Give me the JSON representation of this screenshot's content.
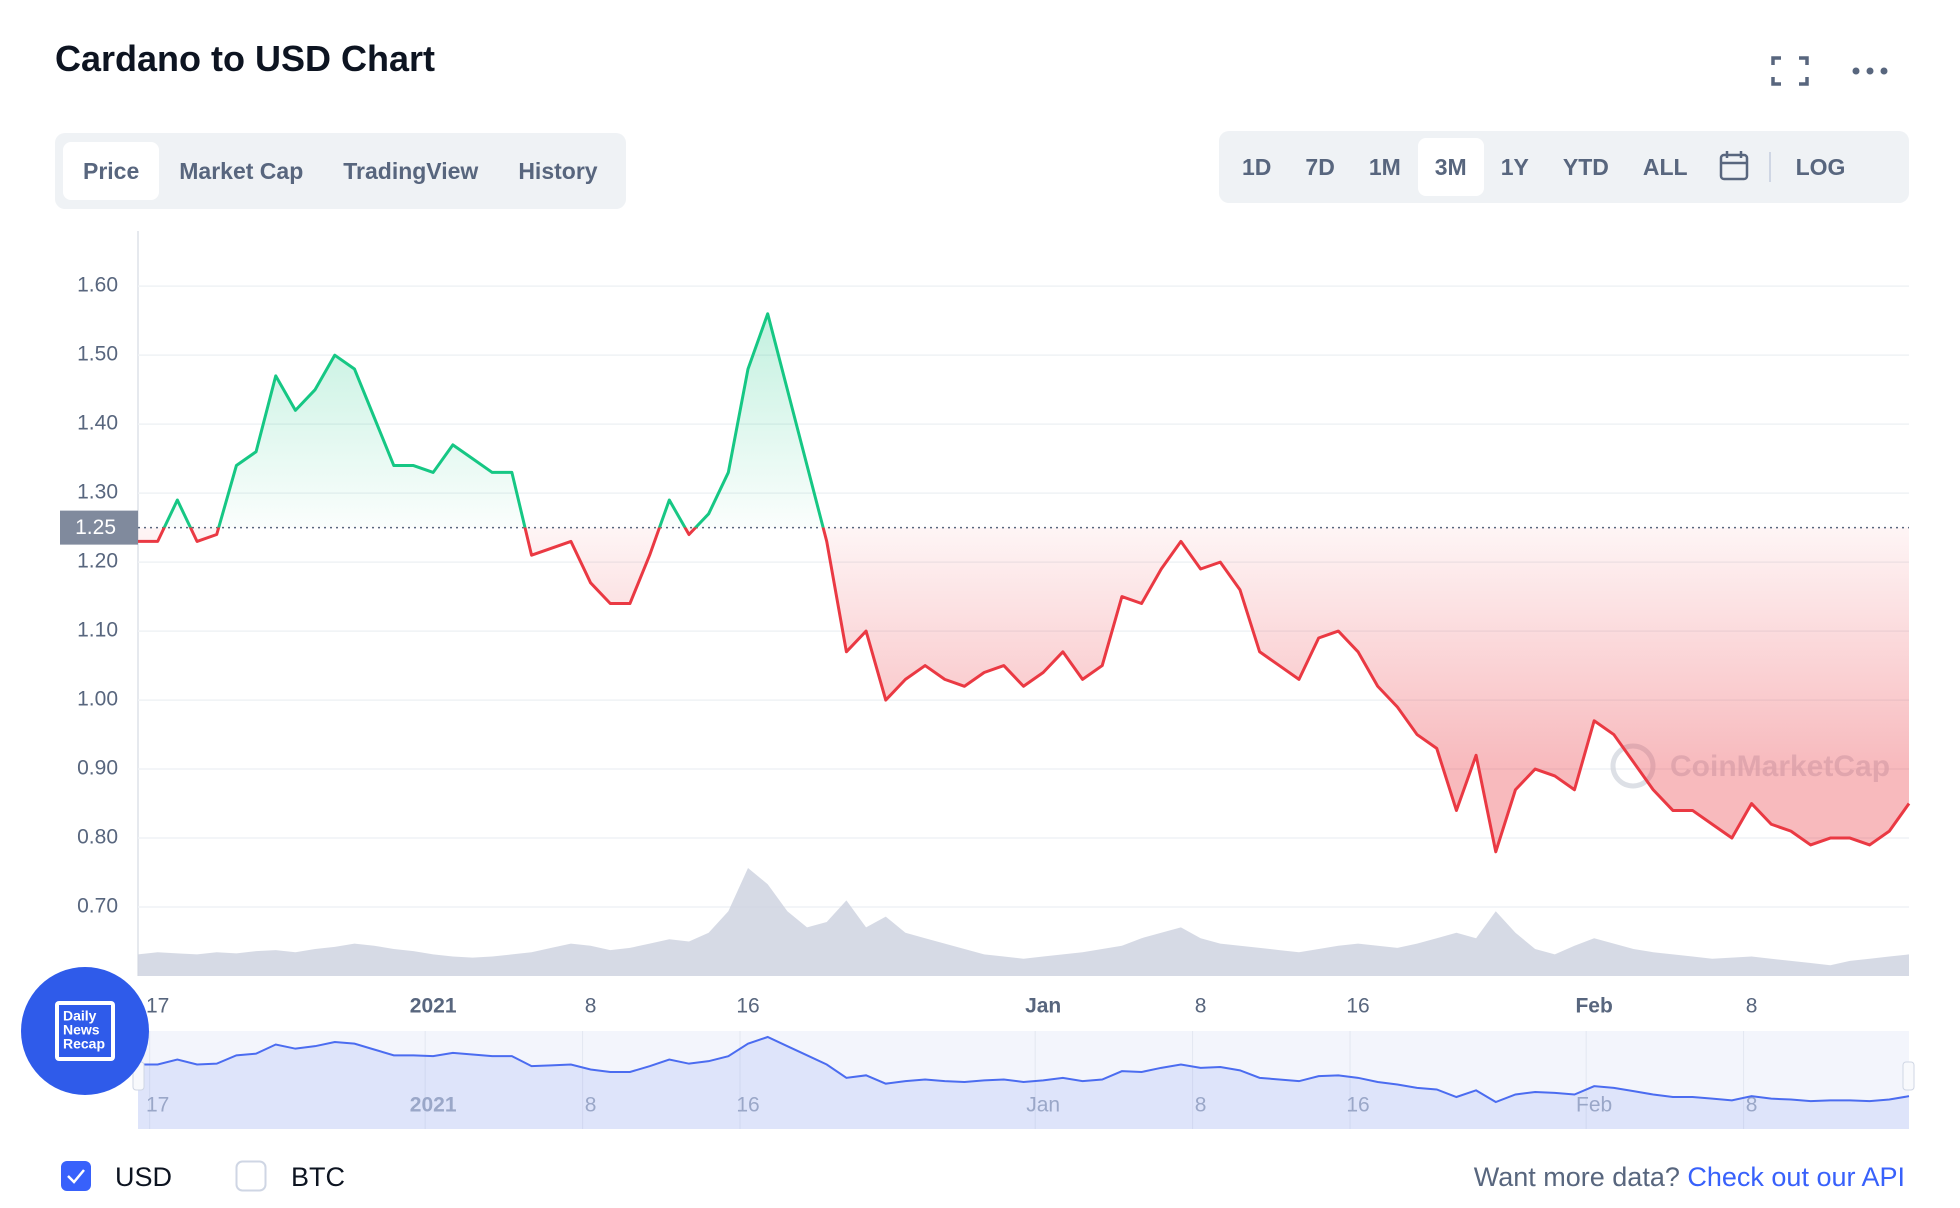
{
  "header": {
    "title": "Cardano to USD Chart"
  },
  "tabs": [
    "Price",
    "Market Cap",
    "TradingView",
    "History"
  ],
  "ranges": [
    "1D",
    "7D",
    "1M",
    "3M",
    "1Y",
    "YTD",
    "ALL"
  ],
  "log_label": "LOG",
  "chart_data": {
    "type": "line",
    "categories": [
      null,
      "17",
      null,
      null,
      null,
      null,
      null,
      null,
      null,
      null,
      null,
      null,
      null,
      null,
      null,
      "2021",
      null,
      null,
      null,
      null,
      null,
      null,
      null,
      "8",
      null,
      null,
      null,
      null,
      null,
      null,
      null,
      "16",
      null,
      null,
      null,
      null,
      null,
      null,
      null,
      null,
      null,
      null,
      null,
      null,
      null,
      null,
      "Jan",
      null,
      null,
      null,
      null,
      null,
      null,
      null,
      "8",
      null,
      null,
      null,
      null,
      null,
      null,
      null,
      "16",
      null,
      null,
      null,
      null,
      null,
      null,
      null,
      null,
      null,
      null,
      null,
      "Feb",
      null,
      null,
      null,
      null,
      null,
      null,
      null,
      "8",
      null,
      null,
      null,
      null,
      null,
      null,
      null,
      null
    ],
    "values": [
      1.23,
      1.23,
      1.29,
      1.23,
      1.24,
      1.34,
      1.36,
      1.47,
      1.42,
      1.45,
      1.5,
      1.48,
      1.41,
      1.34,
      1.34,
      1.33,
      1.37,
      1.35,
      1.33,
      1.33,
      1.21,
      1.22,
      1.23,
      1.17,
      1.14,
      1.14,
      1.21,
      1.29,
      1.24,
      1.27,
      1.33,
      1.48,
      1.56,
      1.45,
      1.34,
      1.23,
      1.07,
      1.1,
      1.0,
      1.03,
      1.05,
      1.03,
      1.02,
      1.04,
      1.05,
      1.02,
      1.04,
      1.07,
      1.03,
      1.05,
      1.15,
      1.14,
      1.19,
      1.23,
      1.19,
      1.2,
      1.16,
      1.07,
      1.05,
      1.03,
      1.09,
      1.1,
      1.07,
      1.02,
      0.99,
      0.95,
      0.93,
      0.84,
      0.92,
      0.78,
      0.87,
      0.9,
      0.89,
      0.87,
      0.97,
      0.95,
      0.91,
      0.87,
      0.84,
      0.84,
      0.82,
      0.8,
      0.85,
      0.82,
      0.81,
      0.79,
      0.8,
      0.8,
      0.79,
      0.81,
      0.85
    ],
    "volume": [
      20,
      22,
      21,
      20,
      22,
      21,
      23,
      24,
      22,
      25,
      27,
      30,
      28,
      25,
      23,
      20,
      18,
      17,
      18,
      20,
      22,
      26,
      30,
      28,
      24,
      26,
      30,
      34,
      32,
      40,
      60,
      100,
      85,
      60,
      45,
      50,
      70,
      45,
      55,
      40,
      35,
      30,
      25,
      20,
      18,
      16,
      18,
      20,
      22,
      25,
      28,
      35,
      40,
      45,
      35,
      30,
      28,
      26,
      24,
      22,
      25,
      28,
      30,
      28,
      26,
      30,
      35,
      40,
      35,
      60,
      40,
      25,
      20,
      28,
      35,
      30,
      25,
      22,
      20,
      18,
      16,
      17,
      18,
      16,
      14,
      12,
      10,
      14,
      16,
      18,
      20
    ],
    "ylim": [
      0.6,
      1.68
    ],
    "yticks": [
      {
        "value": 0.7,
        "label": "0.70"
      },
      {
        "value": 0.8,
        "label": "0.80"
      },
      {
        "value": 0.9,
        "label": "0.90"
      },
      {
        "value": 1.0,
        "label": "1.00"
      },
      {
        "value": 1.1,
        "label": "1.10"
      },
      {
        "value": 1.2,
        "label": "1.20"
      },
      {
        "value": 1.3,
        "label": "1.30"
      },
      {
        "value": 1.4,
        "label": "1.40"
      },
      {
        "value": 1.5,
        "label": "1.50"
      },
      {
        "value": 1.6,
        "label": "1.60"
      }
    ],
    "baseline": {
      "value": 1.25,
      "label": "1.25"
    },
    "colors": {
      "above": "#16c784",
      "below": "#ea3943",
      "volume": "#cfd3e0",
      "navigator": "#4b6cf0"
    },
    "grid": true,
    "watermark": "CoinMarketCap"
  },
  "currencies": [
    "USD",
    "BTC"
  ],
  "footer": {
    "text": "Want more data?",
    "link": "Check out our API"
  },
  "badge": [
    "Daily",
    "News",
    "Recap"
  ]
}
